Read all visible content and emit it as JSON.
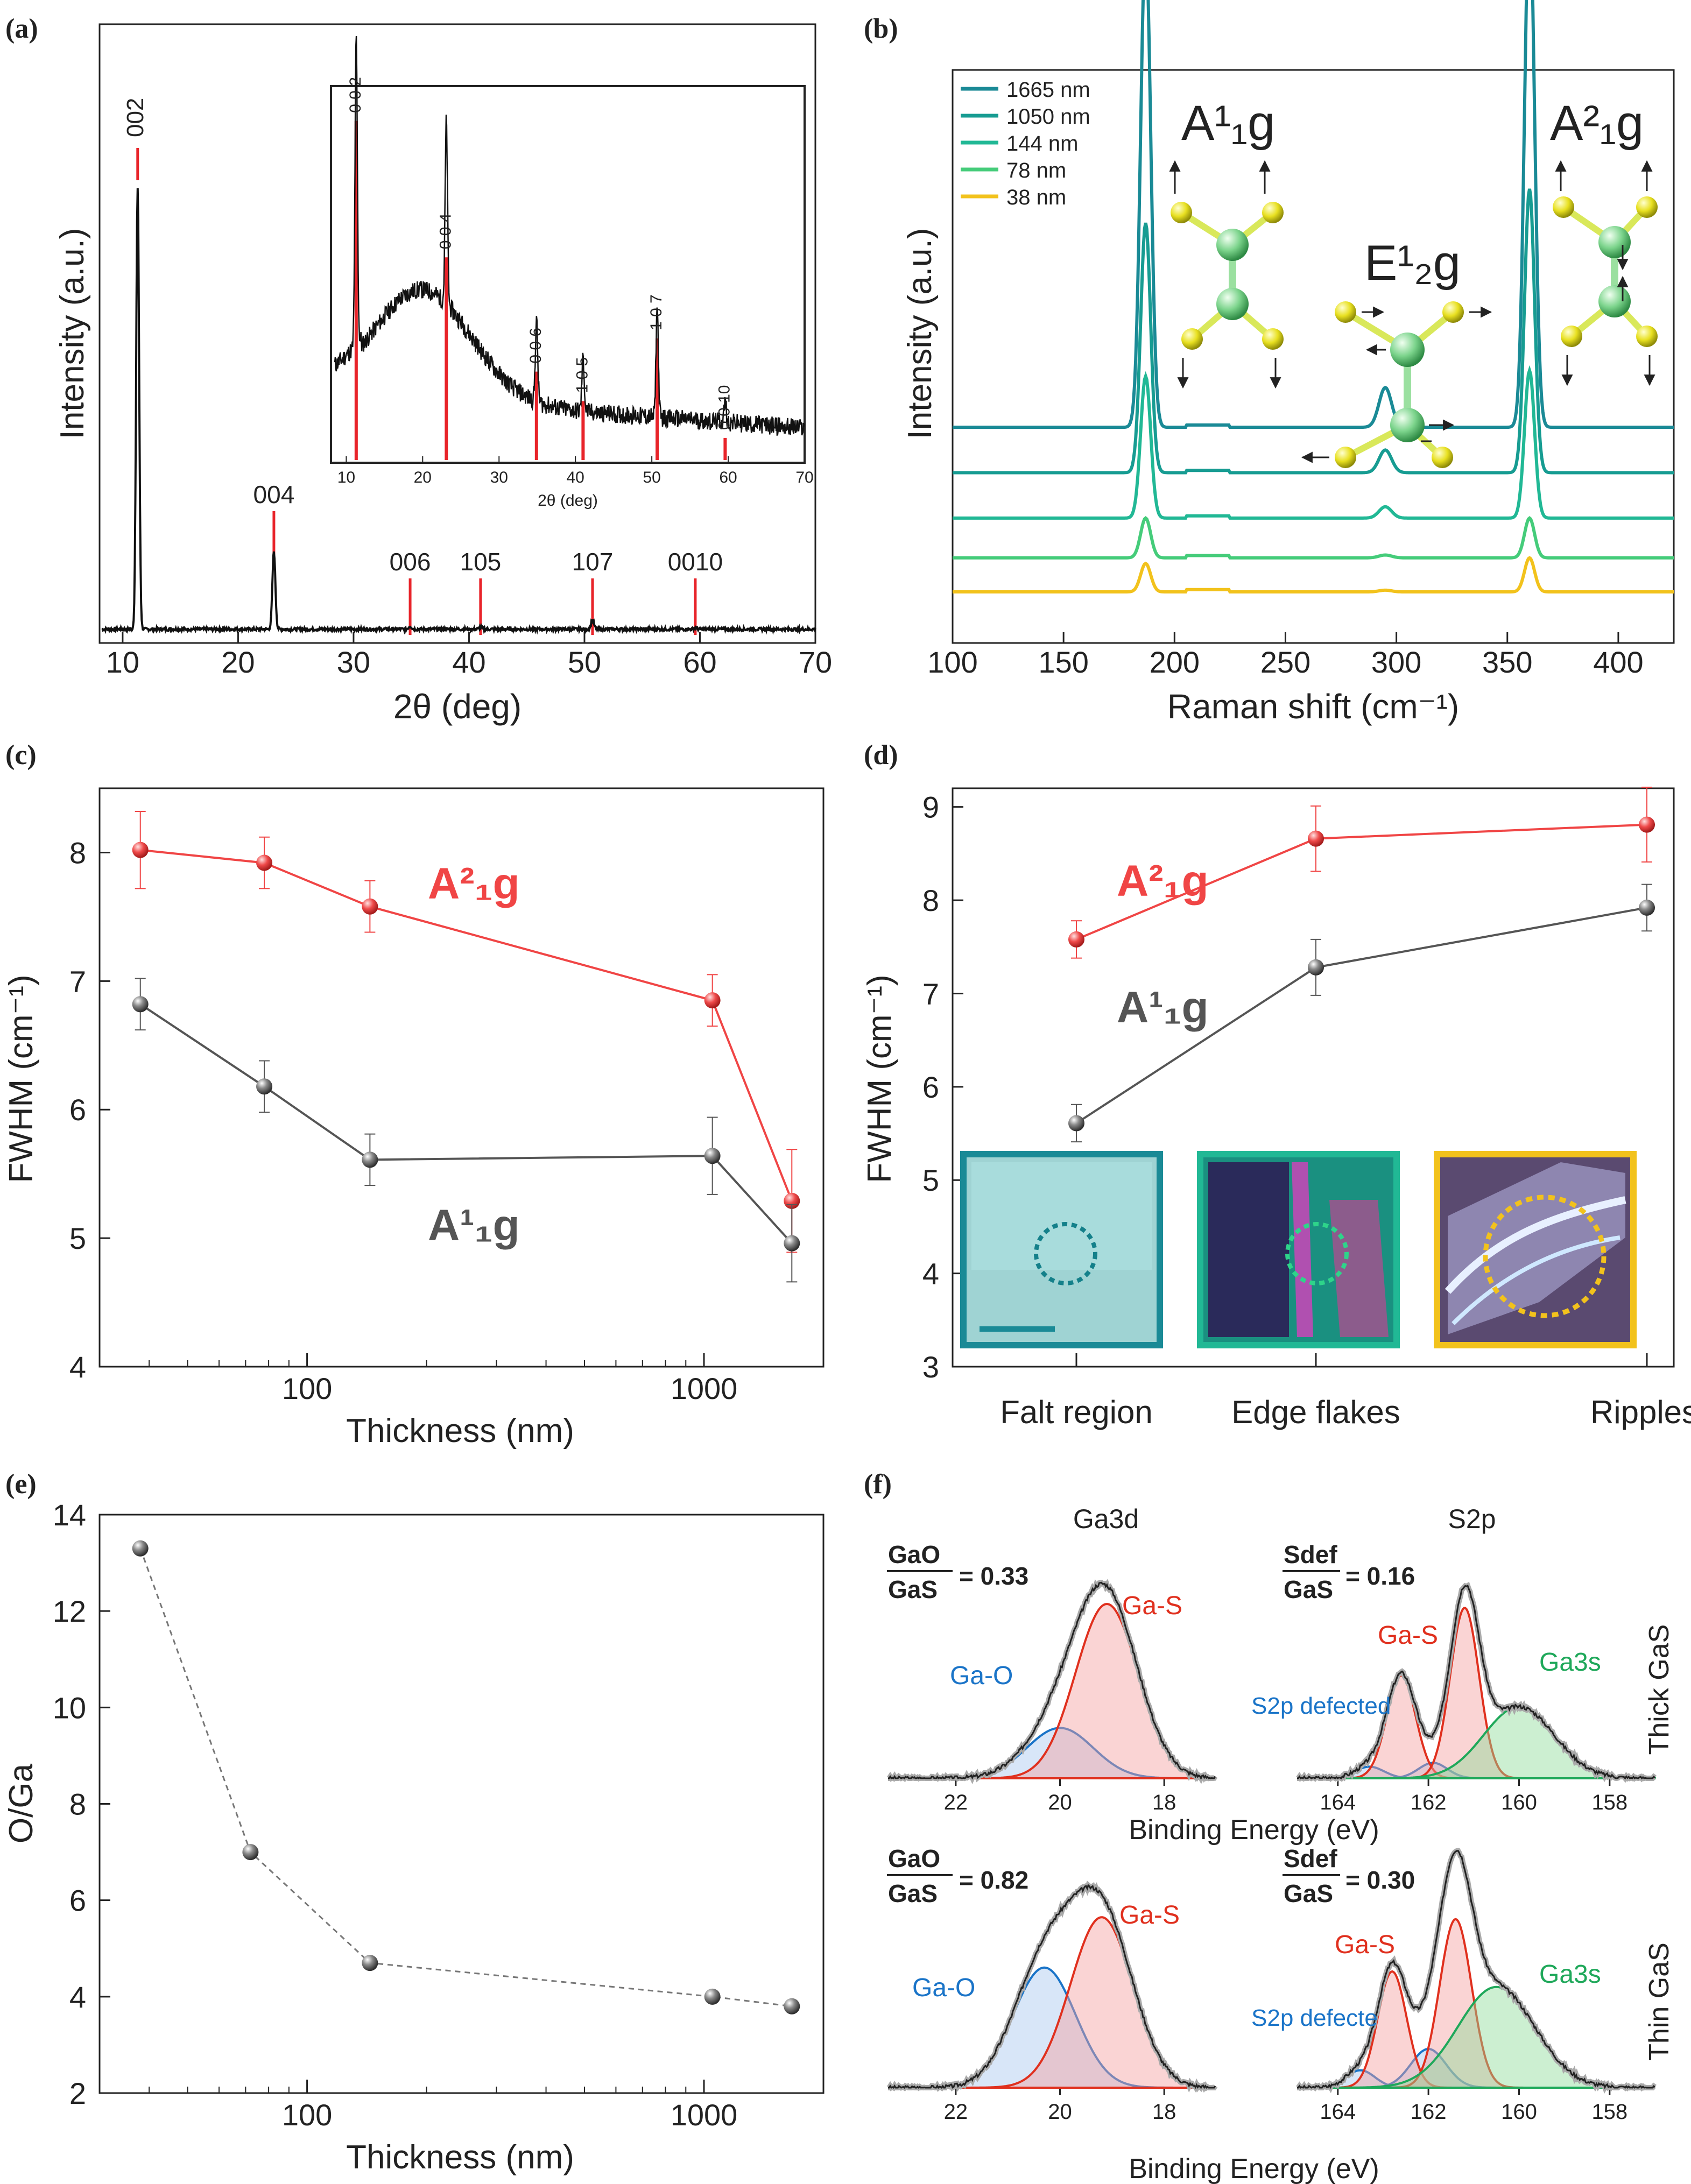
{
  "chart_data": [
    {
      "panel": "a",
      "panel_label": "(a)",
      "type": "line",
      "xlabel": "2θ (deg)",
      "ylabel": "Intensity (a.u.)",
      "xlim": [
        8,
        70
      ],
      "xticks": [
        "10",
        "20",
        "30",
        "40",
        "50",
        "60",
        "70"
      ],
      "peaks": [
        {
          "label": "002",
          "x": 11.3,
          "height": 0.85
        },
        {
          "label": "004",
          "x": 23.1,
          "height": 0.15
        },
        {
          "label": "006",
          "x": 34.9,
          "height": 0.006
        },
        {
          "label": "105",
          "x": 41.0,
          "height": 0.004
        },
        {
          "label": "107",
          "x": 50.7,
          "height": 0.018
        },
        {
          "label": "0010",
          "x": 59.6,
          "height": 0.003
        }
      ],
      "reference_lines": [
        "002",
        "004",
        "006",
        "105",
        "107",
        "0010"
      ],
      "inset": {
        "xlabel": "2θ (deg)",
        "xlim": [
          8,
          70
        ],
        "xticks": [
          "10",
          "20",
          "30",
          "40",
          "50",
          "60",
          "70"
        ],
        "peak_labels": [
          "0 0 2",
          "0 0 4",
          "0 0 6",
          "1 0 5",
          "1 0 7",
          "0 0 10"
        ],
        "peak_x": [
          11.3,
          23.1,
          34.9,
          41.0,
          50.7,
          59.6
        ],
        "peak_height": [
          0.92,
          0.55,
          0.24,
          0.16,
          0.33,
          0.06
        ]
      }
    },
    {
      "panel": "b",
      "panel_label": "(b)",
      "type": "line",
      "xlabel": "Raman shift (cm⁻¹)",
      "ylabel": "Intensity (a.u.)",
      "xlim": [
        100,
        425
      ],
      "xticks": [
        "100",
        "150",
        "200",
        "250",
        "300",
        "350",
        "400"
      ],
      "mode_labels": [
        "A¹₁g",
        "E¹₂g",
        "A²₁g"
      ],
      "series": [
        {
          "name": "1665 nm",
          "color": "#1a8a96",
          "offset": 0.38,
          "peaks": [
            [
              187,
              0.86
            ],
            [
              295,
              0.07
            ],
            [
              360,
              0.92
            ]
          ]
        },
        {
          "name": "1050 nm",
          "color": "#179c92",
          "offset": 0.3,
          "peaks": [
            [
              187,
              0.44
            ],
            [
              295,
              0.04
            ],
            [
              360,
              0.5
            ]
          ]
        },
        {
          "name": "144 nm",
          "color": "#21b895",
          "offset": 0.22,
          "peaks": [
            [
              187,
              0.25
            ],
            [
              295,
              0.02
            ],
            [
              360,
              0.26
            ]
          ]
        },
        {
          "name": "78 nm",
          "color": "#45cc7a",
          "offset": 0.15,
          "peaks": [
            [
              187,
              0.07
            ],
            [
              295,
              0.005
            ],
            [
              360,
              0.07
            ]
          ]
        },
        {
          "name": "38 nm",
          "color": "#f2c21c",
          "offset": 0.09,
          "peaks": [
            [
              187,
              0.05
            ],
            [
              295,
              0.003
            ],
            [
              360,
              0.06
            ]
          ]
        }
      ]
    },
    {
      "panel": "c",
      "panel_label": "(c)",
      "type": "line",
      "xscale": "log",
      "xlabel": "Thickness (nm)",
      "ylabel": "FWHM (cm⁻¹)",
      "xlim": [
        30,
        2000
      ],
      "ylim": [
        4,
        8.5
      ],
      "xticks": [
        "100",
        "1000"
      ],
      "yticks": [
        "4",
        "5",
        "6",
        "7",
        "8"
      ],
      "x": [
        38,
        78,
        144,
        1050,
        1665
      ],
      "series": [
        {
          "name": "A²₁g",
          "color": "#f04545",
          "values": [
            8.02,
            7.92,
            7.58,
            6.85,
            5.29
          ],
          "errors": [
            0.3,
            0.2,
            0.2,
            0.2,
            0.4
          ]
        },
        {
          "name": "A¹₁g",
          "color": "#555555",
          "values": [
            6.82,
            6.18,
            5.61,
            5.64,
            4.96
          ],
          "errors": [
            0.2,
            0.2,
            0.2,
            0.3,
            0.3
          ]
        }
      ]
    },
    {
      "panel": "d",
      "panel_label": "(d)",
      "type": "line",
      "xlabel": "",
      "ylabel": "FWHM (cm⁻¹)",
      "ylim": [
        3,
        9.2
      ],
      "categories": [
        "Falt region",
        "Edge flakes",
        "Ripples"
      ],
      "yticks": [
        "3",
        "4",
        "5",
        "6",
        "7",
        "8",
        "9"
      ],
      "series": [
        {
          "name": "A²₁g",
          "color": "#f04545",
          "values": [
            7.58,
            8.66,
            8.81
          ],
          "errors": [
            0.2,
            0.35,
            0.4
          ]
        },
        {
          "name": "A¹₁g",
          "color": "#555555",
          "values": [
            5.61,
            7.28,
            7.92
          ],
          "errors": [
            0.2,
            0.3,
            0.25
          ]
        }
      ]
    },
    {
      "panel": "e",
      "panel_label": "(e)",
      "type": "scatter",
      "xscale": "log",
      "xlabel": "Thickness (nm)",
      "ylabel": "O/Ga",
      "xlim": [
        30,
        2000
      ],
      "ylim": [
        2,
        14
      ],
      "xticks": [
        "100",
        "1000"
      ],
      "yticks": [
        "2",
        "4",
        "6",
        "8",
        "10",
        "12",
        "14"
      ],
      "x": [
        38,
        72,
        144,
        1050,
        1665
      ],
      "values": [
        13.3,
        7.0,
        4.7,
        4.0,
        3.8
      ]
    },
    {
      "panel": "f",
      "panel_label": "(f)",
      "type": "area",
      "xlabel": "Binding Energy (eV)",
      "column_titles": [
        "Ga3d",
        "S2p"
      ],
      "row_labels": [
        "Thick GaS",
        "Thin GaS"
      ],
      "ga_xticks": [
        "22",
        "20",
        "18"
      ],
      "s_xticks": [
        "164",
        "162",
        "160",
        "158"
      ],
      "component_labels": {
        "ga_o": "Ga-O",
        "ga_s": "Ga-S",
        "s_def": "S2p defected",
        "s_def_thin": "S2p defecte",
        "ga3s": "Ga3s"
      },
      "ratios": [
        {
          "numerator": "GaO",
          "denominator": "GaS",
          "value": "= 0.33"
        },
        {
          "numerator": "Sdef",
          "denominator": "GaS",
          "value": "= 0.16"
        },
        {
          "numerator": "GaO",
          "denominator": "GaS",
          "value": "= 0.82"
        },
        {
          "numerator": "Sdef",
          "denominator": "GaS",
          "value": "= 0.30"
        }
      ]
    }
  ]
}
